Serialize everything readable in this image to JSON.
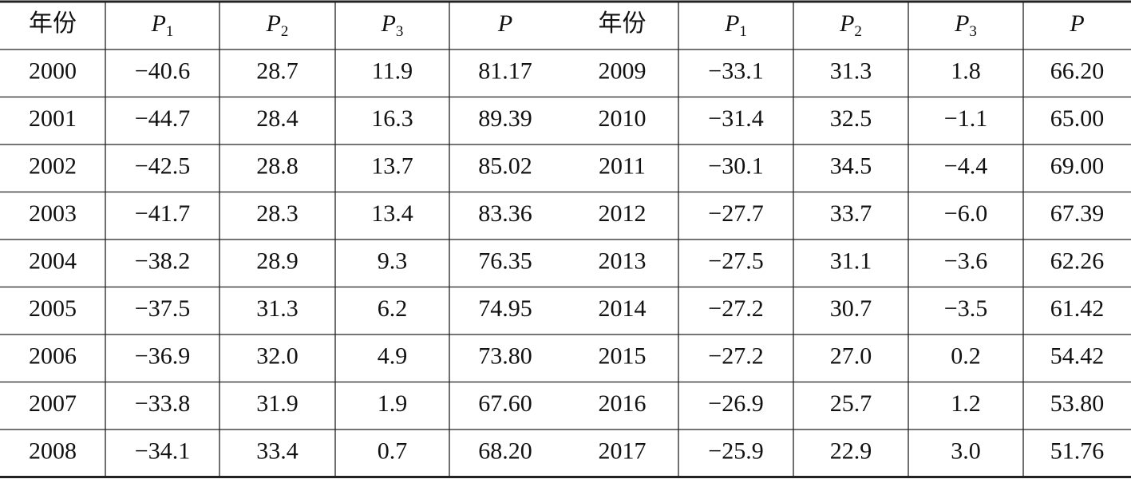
{
  "table": {
    "left": {
      "header": [
        "年份",
        {
          "symbol": "P",
          "subscript": "1"
        },
        {
          "symbol": "P",
          "subscript": "2"
        },
        {
          "symbol": "P",
          "subscript": "3"
        },
        {
          "symbol": "P"
        }
      ],
      "rows": [
        [
          "2000",
          "−40.6",
          "28.7",
          "11.9",
          "81.17"
        ],
        [
          "2001",
          "−44.7",
          "28.4",
          "16.3",
          "89.39"
        ],
        [
          "2002",
          "−42.5",
          "28.8",
          "13.7",
          "85.02"
        ],
        [
          "2003",
          "−41.7",
          "28.3",
          "13.4",
          "83.36"
        ],
        [
          "2004",
          "−38.2",
          "28.9",
          "9.3",
          "76.35"
        ],
        [
          "2005",
          "−37.5",
          "31.3",
          "6.2",
          "74.95"
        ],
        [
          "2006",
          "−36.9",
          "32.0",
          "4.9",
          "73.80"
        ],
        [
          "2007",
          "−33.8",
          "31.9",
          "1.9",
          "67.60"
        ],
        [
          "2008",
          "−34.1",
          "33.4",
          "0.7",
          "68.20"
        ]
      ]
    },
    "right": {
      "header": [
        "年份",
        {
          "symbol": "P",
          "subscript": "1"
        },
        {
          "symbol": "P",
          "subscript": "2"
        },
        {
          "symbol": "P",
          "subscript": "3"
        },
        {
          "symbol": "P"
        }
      ],
      "rows": [
        [
          "2009",
          "−33.1",
          "31.3",
          "1.8",
          "66.20"
        ],
        [
          "2010",
          "−31.4",
          "32.5",
          "−1.1",
          "65.00"
        ],
        [
          "2011",
          "−30.1",
          "34.5",
          "−4.4",
          "69.00"
        ],
        [
          "2012",
          "−27.7",
          "33.7",
          "−6.0",
          "67.39"
        ],
        [
          "2013",
          "−27.5",
          "31.1",
          "−3.6",
          "62.26"
        ],
        [
          "2014",
          "−27.2",
          "30.7",
          "−3.5",
          "61.42"
        ],
        [
          "2015",
          "−27.2",
          "27.0",
          "0.2",
          "54.42"
        ],
        [
          "2016",
          "−26.9",
          "25.7",
          "1.2",
          "53.80"
        ],
        [
          "2017",
          "−25.9",
          "22.9",
          "3.0",
          "51.76"
        ]
      ]
    }
  }
}
